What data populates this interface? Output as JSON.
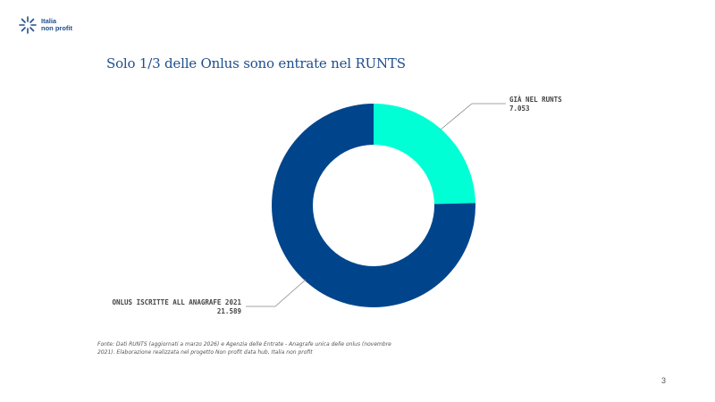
{
  "logo": {
    "line1": "Italia",
    "line2": "non profit"
  },
  "title": "Solo 1/3 delle Onlus sono entrate nel RUNTS",
  "chart_data": {
    "type": "pie",
    "donut": true,
    "title": "Solo 1/3 delle Onlus sono entrate nel RUNTS",
    "categories": [
      "GIÀ NEL RUNTS",
      "ONLUS ISCRITTE ALL ANAGRAFE 2021"
    ],
    "values": [
      7053,
      21589
    ],
    "value_labels": [
      "7.053",
      "21.589"
    ],
    "colors": [
      "#00ffd5",
      "#00458c"
    ],
    "legend": "none"
  },
  "source": "Fonte: Dati RUNTS (aggiornati a marzo 2026) e Agenzia delle Entrate - Anagrafe unica delle onlus (novembre 2021). Elaborazione realizzata nel progetto Non profit data hub, Italia non profit",
  "page_number": "3"
}
